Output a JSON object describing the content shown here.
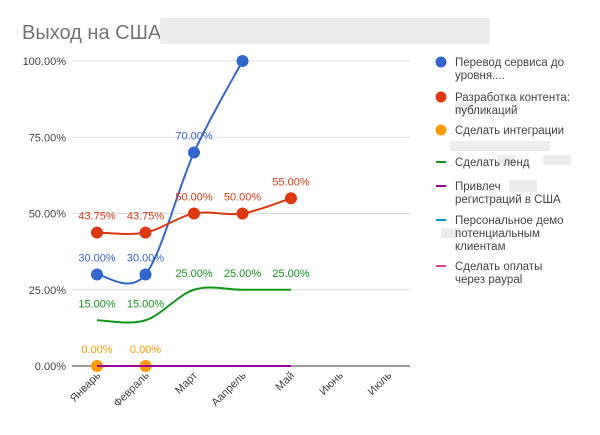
{
  "chart_data": {
    "type": "line",
    "title": "Выход на США",
    "categories": [
      "Январь",
      "Февраль",
      "Март",
      "Аапрель",
      "Май",
      "Июнь",
      "Июль"
    ],
    "y_ticks": [
      "100.00%",
      "75.00%",
      "50.00%",
      "25.00%",
      "0.00%"
    ],
    "ylim": [
      0,
      100
    ],
    "grid": true,
    "legend_position": "right",
    "series": [
      {
        "name_lines": [
          "Перевод сервиса до",
          "уровня...."
        ],
        "color": "#3366cc",
        "values": [
          30,
          30,
          70,
          100,
          null,
          null,
          null
        ],
        "labels": [
          "30.00%",
          "30.00%",
          "70.00%",
          "",
          null,
          null,
          null
        ],
        "markers": true,
        "label_side": "top"
      },
      {
        "name_lines": [
          "Разработка контента:",
          "публикаций"
        ],
        "color": "#dc3912",
        "values": [
          43.75,
          43.75,
          50,
          50,
          55,
          null,
          null
        ],
        "labels": [
          "43.75%",
          "43.75%",
          "50.00%",
          "50.00%",
          "55.00%",
          null,
          null
        ],
        "markers": true,
        "label_side": "top"
      },
      {
        "name_lines": [
          "Сделать интеграции"
        ],
        "color": "#ff9900",
        "values": [
          0,
          0,
          null,
          null,
          null,
          null,
          null
        ],
        "labels": [
          "0.00%",
          "0.00%",
          null,
          null,
          null,
          null,
          null
        ],
        "markers": true,
        "label_side": "top"
      },
      {
        "name_lines": [
          "Сделать ленд"
        ],
        "color": "#109618",
        "values": [
          15,
          15,
          25,
          25,
          25,
          null,
          null
        ],
        "labels": [
          "15.00%",
          "15.00%",
          "25.00%",
          "25.00%",
          "25.00%",
          null,
          null
        ],
        "markers": false,
        "label_side": "top"
      },
      {
        "name_lines": [
          "Привлеч",
          "регистраций в США"
        ],
        "color": "#990099",
        "values": [
          0,
          0,
          0,
          0,
          0,
          null,
          null
        ],
        "labels": [
          null,
          null,
          null,
          null,
          null,
          null,
          null
        ],
        "markers": false,
        "label_side": "top"
      },
      {
        "name_lines": [
          "Персональное демо",
          "потенциальным",
          "клиентам"
        ],
        "color": "#0099c6",
        "values": [
          null,
          null,
          null,
          null,
          null,
          null,
          null
        ],
        "labels": [
          null,
          null,
          null,
          null,
          null,
          null,
          null
        ],
        "markers": false,
        "label_side": "top"
      },
      {
        "name_lines": [
          "Сделать оплаты",
          "через paypal"
        ],
        "color": "#dd4477",
        "values": [
          null,
          null,
          null,
          null,
          null,
          null,
          null
        ],
        "labels": [
          null,
          null,
          null,
          null,
          null,
          null,
          null
        ],
        "markers": false,
        "label_side": "top"
      }
    ]
  }
}
